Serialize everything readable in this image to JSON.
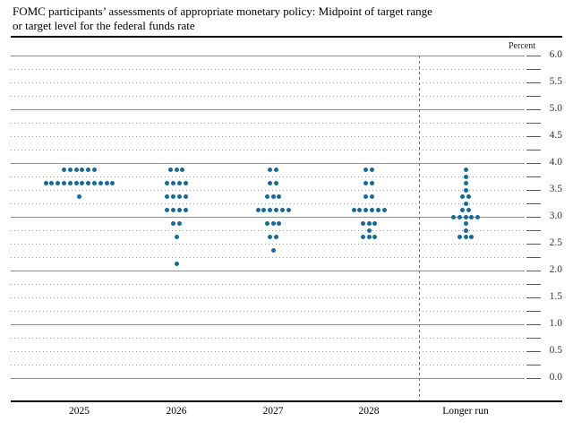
{
  "title": {
    "line1": "FOMC participants’ assessments of appropriate monetary policy: Midpoint of target range",
    "line2": "or target level for the federal funds rate"
  },
  "axis": {
    "unit_label": "Percent",
    "y_labels": [
      "6.0",
      "5.5",
      "5.0",
      "4.5",
      "4.0",
      "3.5",
      "3.0",
      "2.5",
      "2.0",
      "1.5",
      "1.0",
      "0.5",
      "0.0"
    ],
    "x_labels": [
      "2025",
      "2026",
      "2027",
      "2028",
      "Longer run"
    ]
  },
  "colors": {
    "dot": "#15699b",
    "grid_major": "#8f8f8f",
    "grid_minor": "#9a9a9a",
    "axis_line": "#000000"
  },
  "chart_data": {
    "type": "scatter",
    "title": "FOMC participants’ assessments of appropriate monetary policy: Midpoint of target range or target level for the federal funds rate",
    "ylabel": "Percent",
    "ylim": [
      0.0,
      6.0
    ],
    "grid_step": 0.25,
    "label_step": 0.5,
    "grid_on": true,
    "legend": "none",
    "categories": [
      "2025",
      "2026",
      "2027",
      "2028",
      "Longer run"
    ],
    "participants_per_column": 19,
    "series": [
      {
        "category": "2025",
        "dots": [
          {
            "value": 3.875,
            "count": 6
          },
          {
            "value": 3.625,
            "count": 12
          },
          {
            "value": 3.375,
            "count": 1
          }
        ]
      },
      {
        "category": "2026",
        "dots": [
          {
            "value": 3.875,
            "count": 3
          },
          {
            "value": 3.625,
            "count": 4
          },
          {
            "value": 3.375,
            "count": 4
          },
          {
            "value": 3.125,
            "count": 4
          },
          {
            "value": 2.875,
            "count": 2
          },
          {
            "value": 2.625,
            "count": 1
          },
          {
            "value": 2.125,
            "count": 1
          }
        ]
      },
      {
        "category": "2027",
        "dots": [
          {
            "value": 3.875,
            "count": 2
          },
          {
            "value": 3.625,
            "count": 2
          },
          {
            "value": 3.375,
            "count": 3
          },
          {
            "value": 3.125,
            "count": 6
          },
          {
            "value": 2.875,
            "count": 3
          },
          {
            "value": 2.625,
            "count": 2
          },
          {
            "value": 2.375,
            "count": 1
          }
        ]
      },
      {
        "category": "2028",
        "dots": [
          {
            "value": 3.875,
            "count": 2
          },
          {
            "value": 3.625,
            "count": 2
          },
          {
            "value": 3.375,
            "count": 2
          },
          {
            "value": 3.125,
            "count": 6
          },
          {
            "value": 2.875,
            "count": 3
          },
          {
            "value": 2.75,
            "count": 1
          },
          {
            "value": 2.625,
            "count": 3
          }
        ]
      },
      {
        "category": "Longer run",
        "dots": [
          {
            "value": 3.875,
            "count": 1
          },
          {
            "value": 3.75,
            "count": 1
          },
          {
            "value": 3.625,
            "count": 1
          },
          {
            "value": 3.5,
            "count": 1
          },
          {
            "value": 3.375,
            "count": 2
          },
          {
            "value": 3.25,
            "count": 1
          },
          {
            "value": 3.125,
            "count": 2
          },
          {
            "value": 3.0,
            "count": 5
          },
          {
            "value": 2.875,
            "count": 1
          },
          {
            "value": 2.75,
            "count": 1
          },
          {
            "value": 2.625,
            "count": 3
          }
        ]
      }
    ]
  }
}
